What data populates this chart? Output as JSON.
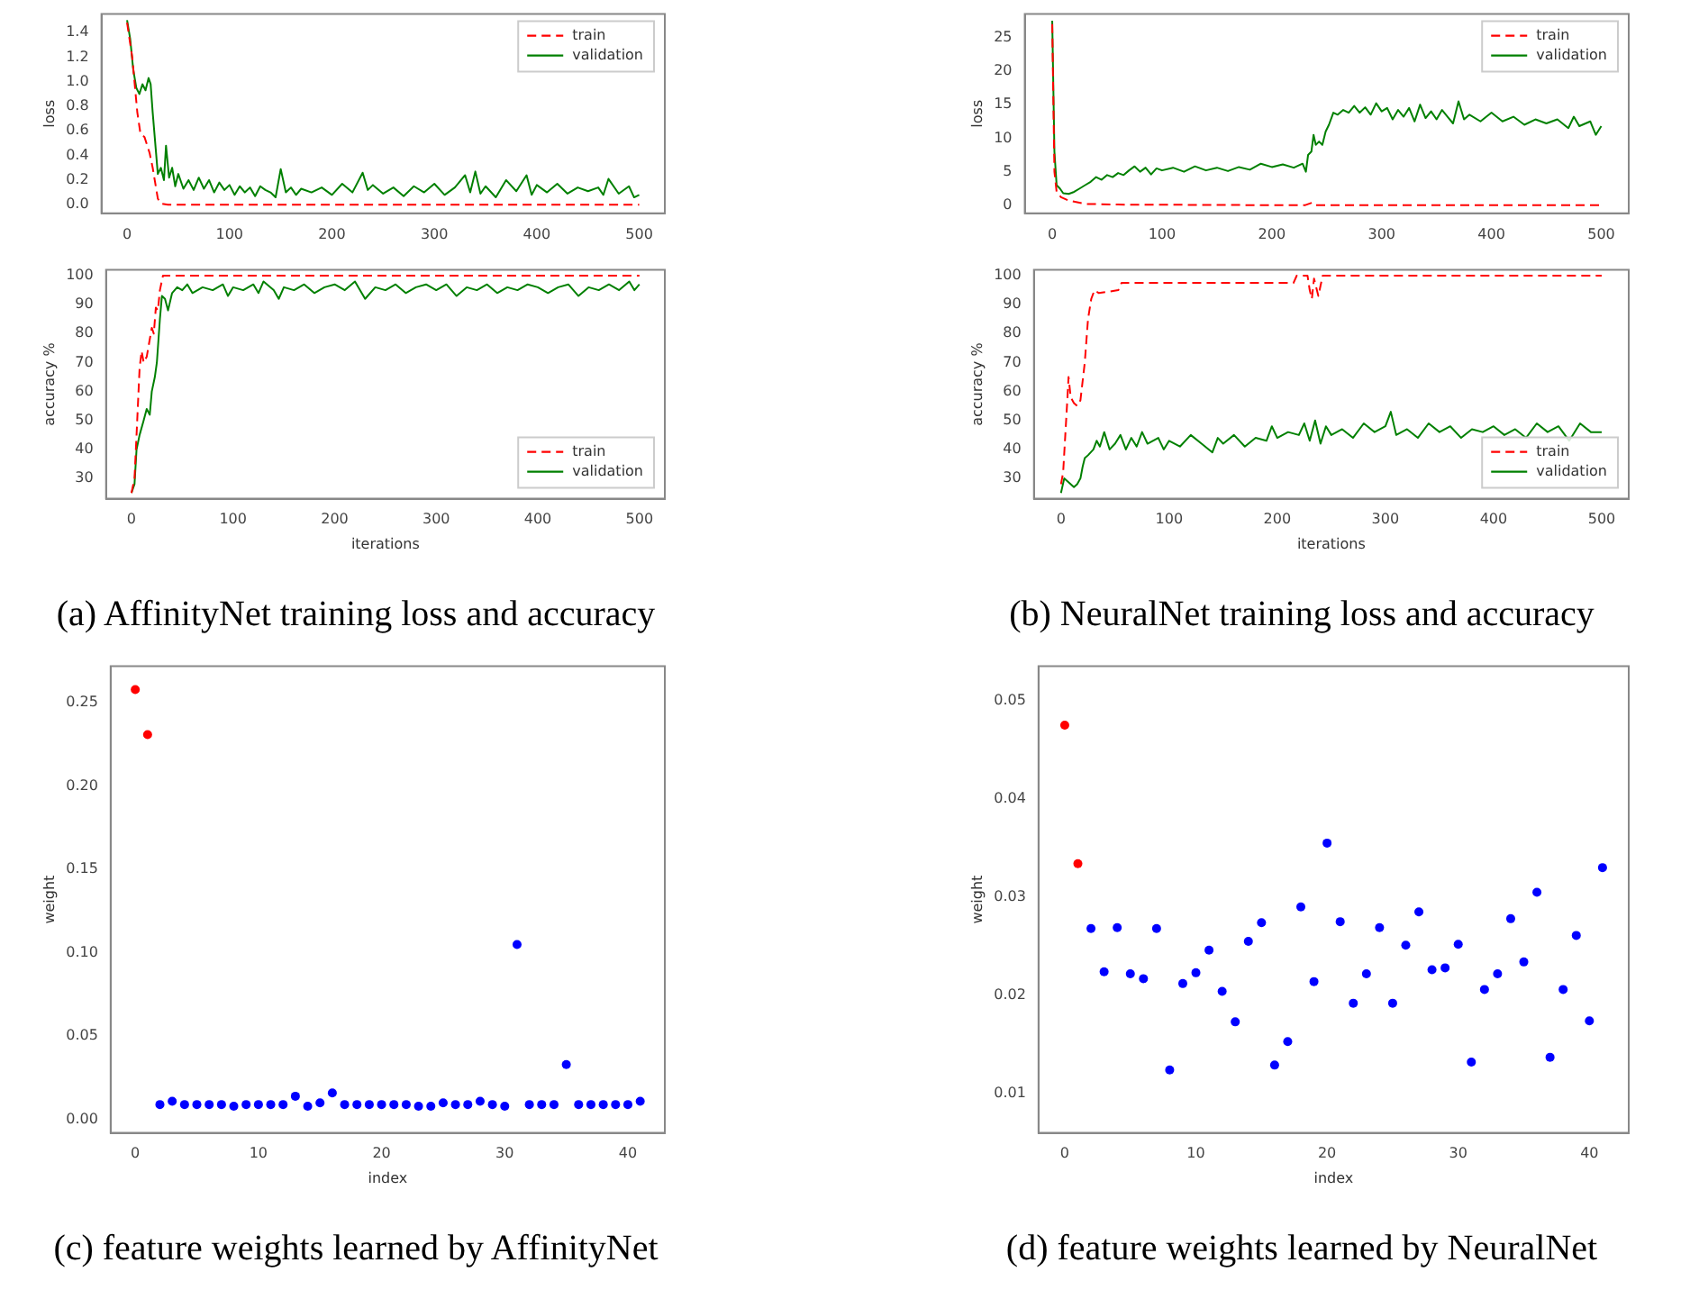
{
  "chart_data": [
    {
      "type": "line",
      "ylabel": "loss",
      "xlim": [
        -25,
        525
      ],
      "xticks": [
        0,
        100,
        200,
        300,
        400,
        500
      ],
      "ylim": [
        -0.07,
        1.55
      ],
      "yticks": [
        {
          "value": 0,
          "label": "0.0"
        },
        0.2,
        0.4,
        0.6,
        0.8,
        {
          "value": 1,
          "label": "1.0"
        },
        1.2,
        1.4
      ],
      "legend": "top right",
      "series": [
        {
          "name": "train",
          "color": "#ff0000",
          "line_style": "dashed",
          "x": [
            0,
            5,
            10,
            13,
            17,
            22,
            25,
            28,
            30,
            33,
            40,
            500
          ],
          "values": [
            1.48,
            1.2,
            0.75,
            0.58,
            0.55,
            0.42,
            0.3,
            0.15,
            0.05,
            0.01,
            0,
            0
          ]
        },
        {
          "name": "validation",
          "color": "#008000",
          "line_style": "solid",
          "x": [
            0,
            3,
            6,
            9,
            12,
            15,
            18,
            21,
            23,
            25,
            28,
            30,
            33,
            36,
            38,
            41,
            44,
            47,
            50,
            55,
            60,
            65,
            70,
            75,
            80,
            85,
            90,
            95,
            100,
            105,
            110,
            115,
            120,
            125,
            130,
            135,
            140,
            145,
            150,
            155,
            160,
            165,
            170,
            180,
            190,
            200,
            210,
            220,
            230,
            235,
            240,
            250,
            260,
            270,
            280,
            290,
            300,
            310,
            320,
            330,
            335,
            340,
            345,
            350,
            360,
            370,
            380,
            390,
            395,
            400,
            410,
            420,
            430,
            440,
            450,
            460,
            465,
            470,
            480,
            490,
            495,
            500
          ],
          "values": [
            1.5,
            1.35,
            1.1,
            0.95,
            0.9,
            0.98,
            0.93,
            1.03,
            0.98,
            0.75,
            0.45,
            0.25,
            0.3,
            0.2,
            0.48,
            0.22,
            0.3,
            0.15,
            0.25,
            0.13,
            0.2,
            0.12,
            0.22,
            0.13,
            0.2,
            0.1,
            0.18,
            0.12,
            0.16,
            0.08,
            0.15,
            0.1,
            0.14,
            0.07,
            0.15,
            0.12,
            0.1,
            0.06,
            0.29,
            0.1,
            0.14,
            0.08,
            0.13,
            0.1,
            0.14,
            0.08,
            0.17,
            0.1,
            0.26,
            0.12,
            0.16,
            0.09,
            0.14,
            0.07,
            0.15,
            0.1,
            0.17,
            0.08,
            0.14,
            0.24,
            0.1,
            0.27,
            0.09,
            0.15,
            0.06,
            0.2,
            0.11,
            0.24,
            0.08,
            0.16,
            0.1,
            0.17,
            0.09,
            0.14,
            0.11,
            0.14,
            0.08,
            0.21,
            0.09,
            0.15,
            0.06,
            0.08
          ]
        }
      ]
    },
    {
      "type": "line",
      "xlabel": "iterations",
      "ylabel": "accuracy %",
      "xlim": [
        -25,
        525
      ],
      "xticks": [
        0,
        100,
        200,
        300,
        400,
        500
      ],
      "ylim": [
        23,
        102
      ],
      "yticks": [
        30,
        40,
        50,
        60,
        70,
        80,
        90,
        100
      ],
      "legend": "bottom right",
      "annotations": [
        "(a) AffinityNet training loss and accuracy"
      ],
      "series": [
        {
          "name": "train",
          "color": "#ff0000",
          "line_style": "dashed",
          "x": [
            0,
            3,
            5,
            8,
            10,
            12,
            15,
            18,
            20,
            22,
            24,
            26,
            28,
            31,
            500
          ],
          "values": [
            25,
            30,
            45,
            68,
            74,
            70,
            72,
            78,
            82,
            80,
            89,
            88,
            95,
            100,
            100
          ]
        },
        {
          "name": "validation",
          "color": "#008000",
          "line_style": "solid",
          "x": [
            0,
            3,
            5,
            8,
            12,
            15,
            18,
            20,
            23,
            25,
            28,
            30,
            33,
            36,
            40,
            45,
            50,
            55,
            60,
            70,
            80,
            90,
            95,
            100,
            110,
            120,
            125,
            130,
            140,
            145,
            150,
            160,
            170,
            180,
            190,
            200,
            210,
            220,
            230,
            240,
            250,
            260,
            270,
            280,
            290,
            300,
            310,
            320,
            330,
            340,
            350,
            360,
            370,
            380,
            390,
            400,
            410,
            420,
            430,
            440,
            450,
            460,
            470,
            480,
            490,
            495,
            500
          ],
          "values": [
            25,
            28,
            40,
            45,
            50,
            54,
            52,
            60,
            65,
            70,
            85,
            93,
            92,
            88,
            94,
            96,
            95,
            97,
            94,
            96,
            95,
            97,
            93,
            96,
            95,
            97,
            94,
            98,
            95,
            92,
            96,
            95,
            97,
            94,
            96,
            97,
            95,
            98,
            92,
            96,
            95,
            97,
            94,
            96,
            97,
            95,
            97,
            93,
            96,
            95,
            97,
            94,
            96,
            95,
            97,
            96,
            94,
            96,
            97,
            93,
            96,
            95,
            97,
            95,
            98,
            95,
            97
          ]
        }
      ]
    },
    {
      "type": "line",
      "ylabel": "loss",
      "xlim": [
        -25,
        525
      ],
      "xticks": [
        0,
        100,
        200,
        300,
        400,
        500
      ],
      "ylim": [
        -1.2,
        28.5
      ],
      "yticks": [
        0,
        5,
        10,
        15,
        20,
        25
      ],
      "legend": "top right",
      "series": [
        {
          "name": "train",
          "color": "#ff0000",
          "line_style": "dashed",
          "x": [
            0,
            2,
            4,
            8,
            15,
            30,
            60,
            230,
            237,
            240,
            500
          ],
          "values": [
            27,
            5,
            2,
            1.2,
            0.7,
            0.2,
            0.1,
            0,
            0.4,
            0,
            0
          ]
        },
        {
          "name": "validation",
          "color": "#008000",
          "line_style": "solid",
          "x": [
            0,
            2,
            4,
            7,
            10,
            15,
            20,
            25,
            30,
            35,
            40,
            45,
            50,
            55,
            60,
            65,
            70,
            75,
            80,
            85,
            90,
            95,
            100,
            110,
            120,
            130,
            140,
            150,
            160,
            170,
            180,
            190,
            200,
            210,
            220,
            228,
            231,
            233,
            236,
            238,
            240,
            243,
            246,
            249,
            252,
            256,
            260,
            265,
            270,
            275,
            280,
            285,
            290,
            295,
            300,
            305,
            310,
            315,
            320,
            325,
            330,
            335,
            340,
            345,
            350,
            355,
            360,
            365,
            370,
            375,
            380,
            390,
            400,
            410,
            420,
            430,
            440,
            450,
            460,
            470,
            475,
            480,
            490,
            495,
            500
          ],
          "values": [
            27.5,
            8,
            3,
            2.5,
            1.8,
            1.7,
            2,
            2.5,
            3,
            3.5,
            4.2,
            3.8,
            4.5,
            4.2,
            4.8,
            4.5,
            5.2,
            5.8,
            5,
            5.6,
            4.6,
            5.5,
            5.2,
            5.6,
            5,
            5.8,
            5.2,
            5.6,
            5.1,
            5.7,
            5.3,
            6.2,
            5.7,
            6.1,
            5.6,
            6.2,
            5,
            7.5,
            8,
            10.5,
            9,
            9.5,
            9,
            11,
            12,
            13.8,
            13.5,
            14.2,
            13.8,
            14.8,
            13.8,
            14.6,
            13.5,
            15.2,
            14,
            14.5,
            12.8,
            14.2,
            13.2,
            14.5,
            12.5,
            15,
            13,
            14,
            12.8,
            14.2,
            13.2,
            12.2,
            15.5,
            12.8,
            13.5,
            12.5,
            13.8,
            12.5,
            13.2,
            12,
            12.8,
            12.2,
            12.8,
            11.5,
            13.2,
            11.8,
            12.5,
            10.5,
            11.8
          ]
        }
      ]
    },
    {
      "type": "line",
      "xlabel": "iterations",
      "ylabel": "accuracy %",
      "xlim": [
        -25,
        525
      ],
      "xticks": [
        0,
        100,
        200,
        300,
        400,
        500
      ],
      "ylim": [
        23,
        102
      ],
      "yticks": [
        30,
        40,
        50,
        60,
        70,
        80,
        90,
        100
      ],
      "legend": "bottom right",
      "annotations": [
        "(b) NeuralNet training loss and accuracy"
      ],
      "series": [
        {
          "name": "train",
          "color": "#ff0000",
          "line_style": "dashed",
          "x": [
            0,
            2,
            4,
            6,
            7,
            9,
            12,
            15,
            18,
            22,
            25,
            28,
            31,
            35,
            53,
            56,
            215,
            218,
            228,
            230,
            232,
            234,
            238,
            242,
            500
          ],
          "values": [
            28,
            32,
            45,
            58,
            65,
            58,
            56,
            55,
            57,
            70,
            85,
            92,
            95,
            94,
            95,
            97.5,
            97.5,
            100,
            100,
            95,
            92,
            99,
            93,
            100,
            100
          ]
        },
        {
          "name": "validation",
          "color": "#008000",
          "line_style": "solid",
          "x": [
            0,
            3,
            6,
            9,
            12,
            15,
            18,
            20,
            22,
            25,
            30,
            33,
            36,
            40,
            45,
            50,
            55,
            60,
            65,
            70,
            75,
            80,
            90,
            95,
            100,
            110,
            120,
            130,
            140,
            145,
            150,
            160,
            170,
            180,
            190,
            195,
            200,
            210,
            220,
            225,
            230,
            235,
            240,
            245,
            250,
            260,
            270,
            280,
            290,
            300,
            305,
            310,
            320,
            330,
            340,
            350,
            360,
            370,
            380,
            390,
            400,
            410,
            420,
            430,
            440,
            450,
            460,
            470,
            480,
            490,
            500
          ],
          "values": [
            25,
            30,
            29,
            28,
            27,
            28,
            30,
            34,
            37,
            38,
            40,
            43,
            41,
            46,
            40,
            42,
            45,
            40,
            44,
            41,
            46,
            42,
            44,
            40,
            43,
            41,
            45,
            42,
            39,
            44,
            42,
            45,
            41,
            44,
            43,
            48,
            44,
            46,
            45,
            49,
            43,
            50,
            42,
            48,
            45,
            47,
            44,
            49,
            46,
            48,
            53,
            45,
            47,
            44,
            49,
            46,
            48,
            44,
            47,
            46,
            48,
            45,
            47,
            44,
            49,
            46,
            48,
            43,
            49,
            46,
            46
          ]
        }
      ]
    },
    {
      "type": "scatter",
      "xlabel": "index",
      "ylabel": "weight",
      "xlim": [
        -2,
        43
      ],
      "xticks": [
        0,
        10,
        20,
        30,
        40
      ],
      "ylim": [
        -0.008,
        0.272
      ],
      "yticks": [
        {
          "value": 0,
          "label": "0.00"
        },
        0.05,
        {
          "value": 0.1,
          "label": "0.10"
        },
        0.15,
        {
          "value": 0.2,
          "label": "0.20"
        },
        0.25
      ],
      "marker": "circle",
      "annotations": [
        "(c) feature weights learned by AffinityNet"
      ],
      "series": [
        {
          "color": "#ff0000",
          "x": [
            0,
            1
          ],
          "values": [
            0.258,
            0.231
          ]
        },
        {
          "color": "#0000ff",
          "x": [
            2,
            3,
            4,
            5,
            6,
            7,
            8,
            9,
            10,
            11,
            12,
            13,
            14,
            15,
            16,
            17,
            18,
            19,
            20,
            21,
            22,
            23,
            24,
            25,
            26,
            27,
            28,
            29,
            30,
            31,
            32,
            33,
            34,
            35,
            36,
            37,
            38,
            39,
            40,
            41
          ],
          "values": [
            0.009,
            0.011,
            0.009,
            0.009,
            0.009,
            0.009,
            0.008,
            0.009,
            0.009,
            0.009,
            0.009,
            0.014,
            0.008,
            0.01,
            0.016,
            0.009,
            0.009,
            0.009,
            0.009,
            0.009,
            0.009,
            0.008,
            0.008,
            0.01,
            0.009,
            0.009,
            0.011,
            0.009,
            0.008,
            0.105,
            0.009,
            0.009,
            0.009,
            0.033,
            0.009,
            0.009,
            0.009,
            0.009,
            0.009,
            0.011
          ]
        }
      ]
    },
    {
      "type": "scatter",
      "xlabel": "index",
      "ylabel": "weight",
      "xlim": [
        -2,
        43
      ],
      "xticks": [
        0,
        10,
        20,
        30,
        40
      ],
      "ylim": [
        0.006,
        0.0535
      ],
      "yticks": [
        0.01,
        0.02,
        0.03,
        0.04,
        0.05
      ],
      "marker": "circle",
      "annotations": [
        "(d) feature weights learned by NeuralNet"
      ],
      "series": [
        {
          "color": "#ff0000",
          "x": [
            0,
            1
          ],
          "values": [
            0.0475,
            0.0334
          ]
        },
        {
          "color": "#0000ff",
          "x": [
            2,
            3,
            4,
            5,
            6,
            7,
            8,
            9,
            10,
            11,
            12,
            13,
            14,
            15,
            16,
            17,
            18,
            19,
            20,
            21,
            22,
            23,
            24,
            25,
            26,
            27,
            28,
            29,
            30,
            31,
            32,
            33,
            34,
            35,
            36,
            37,
            38,
            39,
            40,
            41
          ],
          "values": [
            0.0268,
            0.0224,
            0.0269,
            0.0222,
            0.0217,
            0.0268,
            0.0124,
            0.0212,
            0.0223,
            0.0246,
            0.0204,
            0.0173,
            0.0255,
            0.0274,
            0.0129,
            0.0153,
            0.029,
            0.0214,
            0.0355,
            0.0275,
            0.0192,
            0.0222,
            0.0269,
            0.0192,
            0.0251,
            0.0285,
            0.0226,
            0.0228,
            0.0252,
            0.0132,
            0.0206,
            0.0222,
            0.0278,
            0.0234,
            0.0305,
            0.0137,
            0.0206,
            0.0261,
            0.0174,
            0.033
          ]
        }
      ]
    }
  ]
}
